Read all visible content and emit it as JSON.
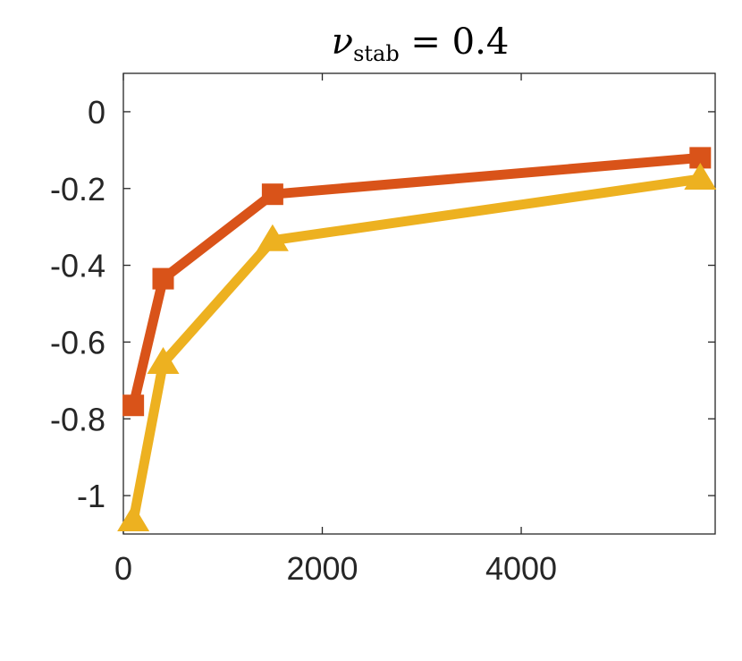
{
  "chart_data": {
    "type": "line",
    "title": {
      "symbol": "ν",
      "subscript": "stab",
      "rest": " = 0.4"
    },
    "xlabel": "",
    "ylabel": "",
    "xlim": [
      0,
      5950
    ],
    "ylim": [
      -1.1,
      0.1
    ],
    "xticks": [
      0,
      2000,
      4000
    ],
    "xtick_labels": [
      "0",
      "2000",
      "4000"
    ],
    "yticks": [
      0,
      -0.2,
      -0.4,
      -0.6,
      -0.8,
      -1
    ],
    "ytick_labels": [
      "0",
      "-0.2",
      "-0.4",
      "-0.6",
      "-0.8",
      "-1"
    ],
    "grid": false,
    "series": [
      {
        "marker": "square",
        "color": "#D95319",
        "x": [
          100,
          400,
          1500,
          5800
        ],
        "y": [
          -0.765,
          -0.435,
          -0.215,
          -0.12
        ]
      },
      {
        "marker": "triangle",
        "color": "#EDB120",
        "x": [
          100,
          400,
          1500,
          5800
        ],
        "y": [
          -1.065,
          -0.655,
          -0.335,
          -0.175
        ]
      }
    ]
  }
}
